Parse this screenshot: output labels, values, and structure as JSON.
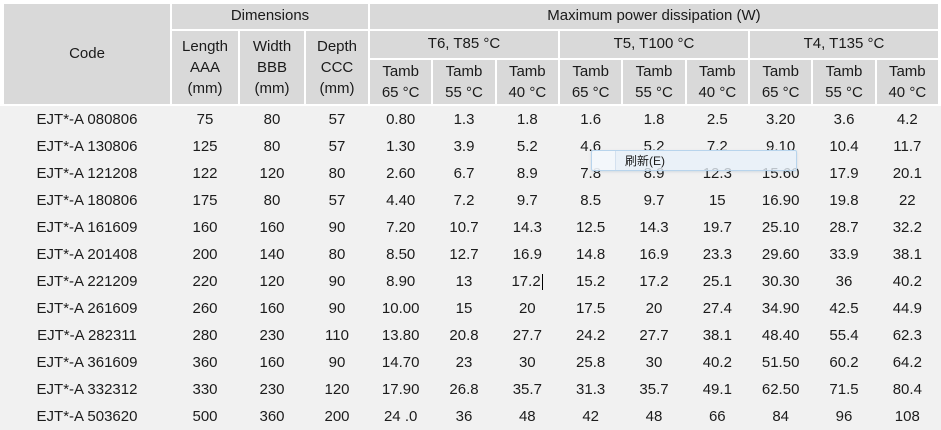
{
  "table": {
    "header": {
      "code": "Code",
      "dimensions": "Dimensions",
      "max_power": "Maximum power dissipation (W)",
      "dim_cols": [
        "Length\nAAA\n(mm)",
        "Width\nBBB\n(mm)",
        "Depth\nCCC\n(mm)"
      ],
      "groups": [
        "T6, T85 °C",
        "T5, T100 °C",
        "T4, T135 °C"
      ],
      "tamb": [
        "Tamb\n65 °C",
        "Tamb\n55 °C",
        "Tamb\n40 °C",
        "Tamb\n65 °C",
        "Tamb\n55 °C",
        "Tamb\n40 °C",
        "Tamb\n65 °C",
        "Tamb\n55 °C",
        "Tamb\n40 °C"
      ]
    },
    "rows": [
      [
        "EJT*-A 080806",
        "75",
        "80",
        "57",
        "0.80",
        "1.3",
        "1.8",
        "1.6",
        "1.8",
        "2.5",
        "3.20",
        "3.6",
        "4.2"
      ],
      [
        "EJT*-A 130806",
        "125",
        "80",
        "57",
        "1.30",
        "3.9",
        "5.2",
        "4.6",
        "5.2",
        "7.2",
        "9.10",
        "10.4",
        "11.7"
      ],
      [
        "EJT*-A 121208",
        "122",
        "120",
        "80",
        "2.60",
        "6.7",
        "8.9",
        "7.8",
        "8.9",
        "12.3",
        "15.60",
        "17.9",
        "20.1"
      ],
      [
        "EJT*-A 180806",
        "175",
        "80",
        "57",
        "4.40",
        "7.2",
        "9.7",
        "8.5",
        "9.7",
        "15",
        "16.90",
        "19.8",
        "22"
      ],
      [
        "EJT*-A 161609",
        "160",
        "160",
        "90",
        "7.20",
        "10.7",
        "14.3",
        "12.5",
        "14.3",
        "19.7",
        "25.10",
        "28.7",
        "32.2"
      ],
      [
        "EJT*-A 201408",
        "200",
        "140",
        "80",
        "8.50",
        "12.7",
        "16.9",
        "14.8",
        "16.9",
        "23.3",
        "29.60",
        "33.9",
        "38.1"
      ],
      [
        "EJT*-A 221209",
        "220",
        "120",
        "90",
        "8.90",
        "13",
        "17.2",
        "15.2",
        "17.2",
        "25.1",
        "30.30",
        "36",
        "40.2"
      ],
      [
        "EJT*-A 261609",
        "260",
        "160",
        "90",
        "10.00",
        "15",
        "20",
        "17.5",
        "20",
        "27.4",
        "34.90",
        "42.5",
        "44.9"
      ],
      [
        "EJT*-A 282311",
        "280",
        "230",
        "110",
        "13.80",
        "20.8",
        "27.7",
        "24.2",
        "27.7",
        "38.1",
        "48.40",
        "55.4",
        "62.3"
      ],
      [
        "EJT*-A 361609",
        "360",
        "160",
        "90",
        "14.70",
        "23",
        "30",
        "25.8",
        "30",
        "40.2",
        "51.50",
        "60.2",
        "64.2"
      ],
      [
        "EJT*-A 332312",
        "330",
        "230",
        "120",
        "17.90",
        "26.8",
        "35.7",
        "31.3",
        "35.7",
        "49.1",
        "62.50",
        "71.5",
        "80.4"
      ],
      [
        "EJT*-A 503620",
        "500",
        "360",
        "200",
        "24 .0",
        "36",
        "48",
        "42",
        "48",
        "66",
        "84",
        "96",
        "108"
      ]
    ],
    "text_cursor": {
      "row_index": 6,
      "col_index": 6
    }
  },
  "context_menu": {
    "refresh_label": "刷新(E)"
  },
  "colors": {
    "header_cell_bg": "#d9d9d9",
    "body_bg": "#f1f1f1",
    "gap_bg": "#ffffff",
    "menu_bg": "#e8f1fa",
    "menu_border": "#b8d4ec",
    "text": "#1c1c1c"
  }
}
